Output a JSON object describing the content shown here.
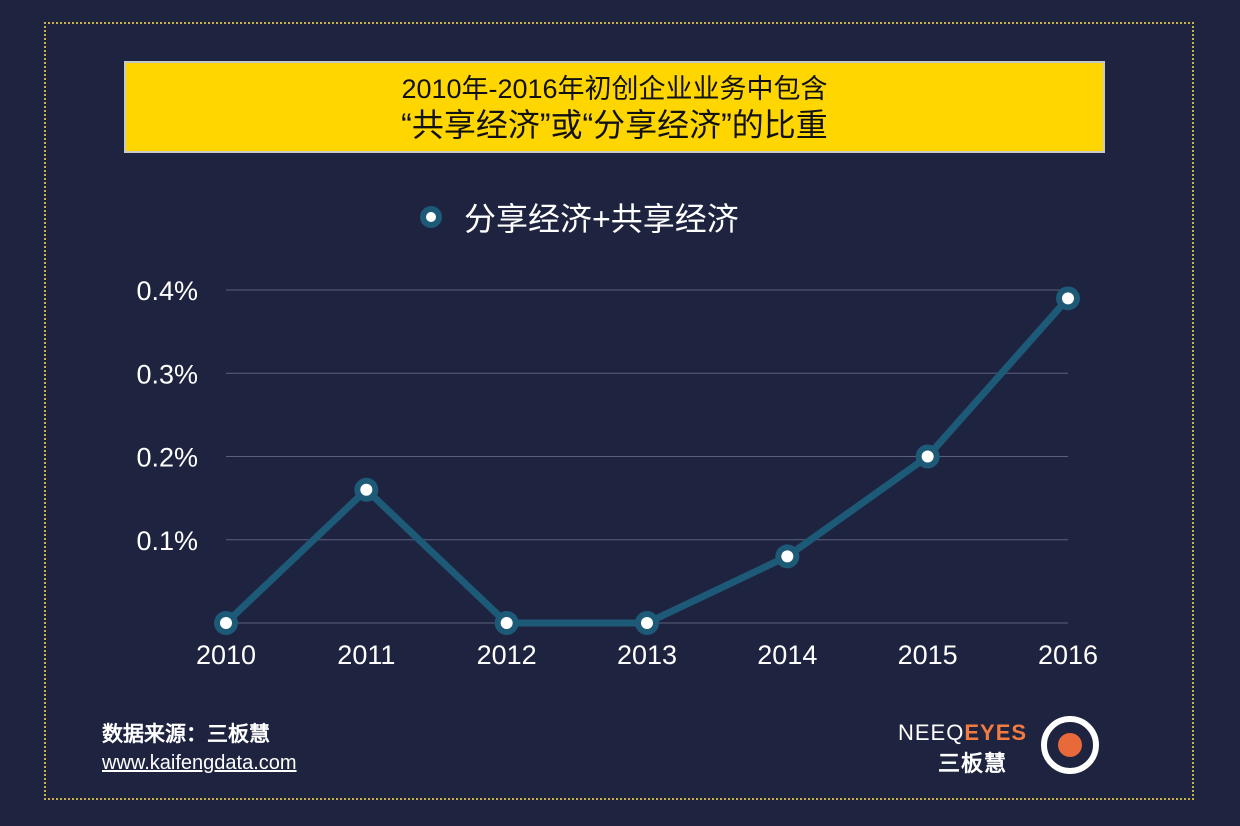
{
  "title": {
    "line1": "2010年-2016年初创企业业务中包含",
    "line2": "“共享经济”或“分享经济”的比重"
  },
  "colors": {
    "background": "#1e2340",
    "title_bg": "#ffd600",
    "line": "#1d5a78",
    "marker_fill": "#ffffff",
    "grid": "#5a607c",
    "brand_accent": "#f47b3f"
  },
  "chart_data": {
    "type": "line",
    "title": "2010年-2016年初创企业业务中包含“共享经济”或“分享经济”的比重",
    "categories": [
      "2010",
      "2011",
      "2012",
      "2013",
      "2014",
      "2015",
      "2016"
    ],
    "series": [
      {
        "name": "分享经济+共享经济",
        "values": [
          0.0,
          0.16,
          0.0,
          0.0,
          0.08,
          0.2,
          0.39
        ]
      }
    ],
    "ylim": [
      0,
      0.4
    ],
    "yticks": [
      0.1,
      0.2,
      0.3,
      0.4
    ],
    "ytick_labels": [
      "0.1%",
      "0.2%",
      "0.3%",
      "0.4%"
    ],
    "grid": true,
    "legend_position": "top-center",
    "xlabel": "",
    "ylabel": ""
  },
  "footer": {
    "source": "数据来源：三板慧",
    "url": "www.kaifengdata.com"
  },
  "brand": {
    "name_part1": "NEEQ",
    "name_part2": "EYES",
    "sub": "三板慧",
    "logo_icon": "eye-logo-icon"
  }
}
